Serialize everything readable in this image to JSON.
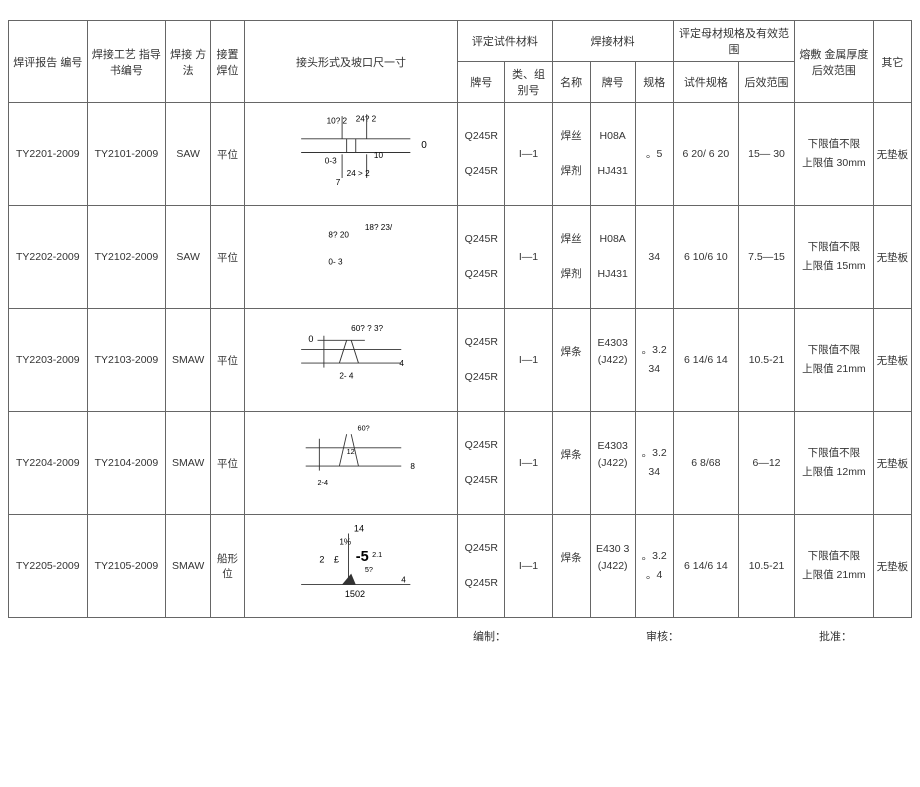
{
  "header": {
    "col1": "焊评报告 编号",
    "col2": "焊接工艺 指导书编号",
    "col3": "焊接 方法",
    "col4": "接置焊位",
    "col5": "接头形式及坡口尺一寸",
    "grp_material": "评定试件材料",
    "col6": "牌号",
    "col7": "类、组 别号",
    "grp_weldmat": "焊接材料",
    "col8": "名称",
    "col9": "牌号",
    "col10": "规格",
    "grp_base": "评定母材规格及有效范围",
    "col11": "试件规格",
    "col12": "后效范围",
    "col13": "熔敷 金属厚度后效范围",
    "col14": "其它"
  },
  "rows": [
    {
      "report_no": "TY2201-2009",
      "wps_no": "TY2101-2009",
      "method": "SAW",
      "position": "平位",
      "diagram_labels": [
        "10? 2",
        "24? 2",
        "0",
        "0-3",
        "10",
        "24 > 2",
        "7"
      ],
      "grade1": "Q245R",
      "grade2": "Q245R",
      "class": "I—1",
      "weld_name1": "焊丝",
      "weld_name2": "焊剂",
      "weld_grade1": "H08A",
      "weld_grade2": "HJ431",
      "spec": "。5",
      "test_spec": "6 20/ 6 20",
      "range": "15— 30",
      "deposit1": "下限值不限",
      "deposit2": "上限值 30mm",
      "other": "无垫板"
    },
    {
      "report_no": "TY2202-2009",
      "wps_no": "TY2102-2009",
      "method": "SAW",
      "position": "平位",
      "diagram_labels": [
        "8? 20",
        "18? 23/",
        "0- 3"
      ],
      "grade1": "Q245R",
      "grade2": "Q245R",
      "class": "I—1",
      "weld_name1": "焊丝",
      "weld_name2": "焊剂",
      "weld_grade1": "H08A",
      "weld_grade2": "HJ431",
      "spec": "34",
      "test_spec": "6 10/6 10",
      "range": "7.5—15",
      "deposit1": "下限值不限",
      "deposit2": "上限值 15mm",
      "other": "无垫板"
    },
    {
      "report_no": "TY2203-2009",
      "wps_no": "TY2103-2009",
      "method": "SMAW",
      "position": "平位",
      "diagram_labels": [
        "0",
        "60? ? 3?",
        "4",
        "2- 4"
      ],
      "grade1": "Q245R",
      "grade2": "Q245R",
      "class": "I—1",
      "weld_name1": "焊条",
      "weld_name2": "",
      "weld_grade1": "E4303 (J422)",
      "weld_grade2": "",
      "spec": "。3.2\n34",
      "test_spec": "6 14/6 14",
      "range": "10.5-21",
      "deposit1": "下限值不限",
      "deposit2": "上限值 21mm",
      "other": "无垫板"
    },
    {
      "report_no": "TY2204-2009",
      "wps_no": "TY2104-2009",
      "method": "SMAW",
      "position": "平位",
      "diagram_labels": [
        "60?",
        "12",
        "8",
        "2-4"
      ],
      "grade1": "Q245R",
      "grade2": "Q245R",
      "class": "I—1",
      "weld_name1": "焊条",
      "weld_name2": "",
      "weld_grade1": "E4303 (J422)",
      "weld_grade2": "",
      "spec": "。3.2\n34",
      "test_spec": "6 8/68",
      "range": "6—12",
      "deposit1": "下限值不限",
      "deposit2": "上限值 12mm",
      "other": "无垫板"
    },
    {
      "report_no": "TY2205-2009",
      "wps_no": "TY2105-2009",
      "method": "SMAW",
      "position": "船形位",
      "diagram_labels": [
        "14",
        "1%",
        "2",
        "£",
        "-5",
        "2.1",
        "5?",
        "4",
        "1502"
      ],
      "grade1": "Q245R",
      "grade2": "Q245R",
      "class": "I—1",
      "weld_name1": "焊条",
      "weld_name2": "",
      "weld_grade1": "E430 3 (J422)",
      "weld_grade2": "",
      "spec": "。3.2\n。4",
      "test_spec": "6 14/6 14",
      "range": "10.5-21",
      "deposit1": "下限值不限",
      "deposit2": "上限值 21mm",
      "other": "无垫板"
    }
  ],
  "footer": {
    "f1": "编制：",
    "f2": "审核：",
    "f3": "批准："
  }
}
